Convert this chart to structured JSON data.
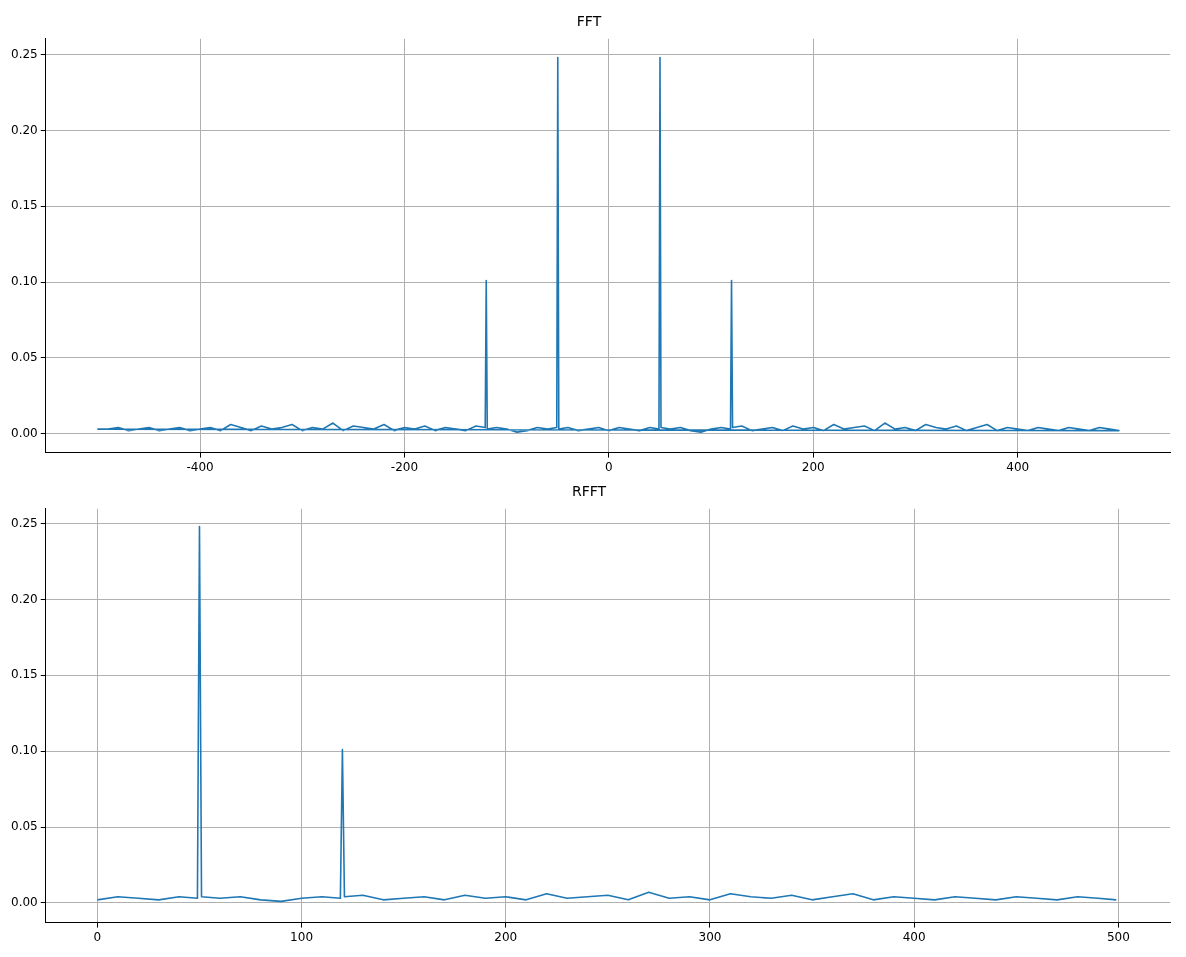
{
  "chart_data": [
    {
      "type": "line",
      "title": "FFT",
      "grid": true,
      "xlim": [
        -551,
        549
      ],
      "xticks": [
        -400,
        -200,
        0,
        200,
        400
      ],
      "ylim": [
        -0.0125,
        0.2604
      ],
      "yticks": [
        {
          "value": 0,
          "label": "0.00"
        },
        {
          "value": 0.05,
          "label": "0.05"
        },
        {
          "value": 0.1,
          "label": "0.10"
        },
        {
          "value": 0.15,
          "label": "0.15"
        },
        {
          "value": 0.2,
          "label": "0.20"
        },
        {
          "value": 0.25,
          "label": "0.25"
        }
      ],
      "series": [
        {
          "color": "#1f77b4",
          "x": [
            0,
            10,
            20,
            30,
            40,
            49,
            50,
            51,
            60,
            70,
            80,
            90,
            100,
            110,
            119,
            120,
            121,
            130,
            140,
            150,
            160,
            170,
            180,
            190,
            200,
            210,
            220,
            230,
            240,
            250,
            260,
            270,
            280,
            290,
            300,
            310,
            320,
            330,
            340,
            350,
            360,
            370,
            380,
            390,
            400,
            410,
            420,
            430,
            440,
            450,
            460,
            470,
            480,
            490,
            499,
            -500,
            -490,
            -480,
            -470,
            -460,
            -450,
            -440,
            -430,
            -420,
            -410,
            -400,
            -390,
            -380,
            -370,
            -360,
            -350,
            -340,
            -330,
            -320,
            -310,
            -300,
            -290,
            -280,
            -270,
            -260,
            -250,
            -240,
            -230,
            -220,
            -210,
            -200,
            -190,
            -180,
            -170,
            -160,
            -150,
            -140,
            -130,
            -121,
            -120,
            -119,
            -110,
            -100,
            -90,
            -80,
            -70,
            -60,
            -51,
            -50,
            -49,
            -40,
            -30,
            -20,
            -10,
            -1
          ],
          "values": [
            0.002,
            0.004,
            0.003,
            0.002,
            0.004,
            0.003,
            0.248,
            0.004,
            0.003,
            0.004,
            0.002,
            0.001,
            0.003,
            0.004,
            0.003,
            0.101,
            0.004,
            0.005,
            0.002,
            0.003,
            0.004,
            0.002,
            0.005,
            0.003,
            0.004,
            0.002,
            0.006,
            0.003,
            0.004,
            0.005,
            0.002,
            0.007,
            0.003,
            0.004,
            0.002,
            0.006,
            0.004,
            0.003,
            0.005,
            0.002,
            0.004,
            0.006,
            0.002,
            0.004,
            0.003,
            0.002,
            0.004,
            0.003,
            0.002,
            0.004,
            0.003,
            0.002,
            0.004,
            0.003,
            0.002,
            0.003,
            0.003,
            0.004,
            0.002,
            0.003,
            0.004,
            0.002,
            0.003,
            0.004,
            0.002,
            0.003,
            0.004,
            0.002,
            0.006,
            0.004,
            0.002,
            0.005,
            0.003,
            0.004,
            0.006,
            0.002,
            0.004,
            0.003,
            0.007,
            0.002,
            0.005,
            0.004,
            0.003,
            0.006,
            0.002,
            0.004,
            0.003,
            0.005,
            0.002,
            0.004,
            0.003,
            0.002,
            0.005,
            0.004,
            0.101,
            0.003,
            0.004,
            0.003,
            0.001,
            0.002,
            0.004,
            0.003,
            0.004,
            0.248,
            0.003,
            0.004,
            0.002,
            0.003,
            0.004,
            0.002
          ]
        }
      ]
    },
    {
      "type": "line",
      "title": "RFFT",
      "grid": true,
      "xlim": [
        -25.3,
        525.3
      ],
      "xticks": [
        0,
        100,
        200,
        300,
        400,
        500
      ],
      "ylim": [
        -0.013,
        0.2597
      ],
      "yticks": [
        {
          "value": 0,
          "label": "0.00"
        },
        {
          "value": 0.05,
          "label": "0.05"
        },
        {
          "value": 0.1,
          "label": "0.10"
        },
        {
          "value": 0.15,
          "label": "0.15"
        },
        {
          "value": 0.2,
          "label": "0.20"
        },
        {
          "value": 0.25,
          "label": "0.25"
        }
      ],
      "series": [
        {
          "color": "#1f77b4",
          "x": [
            0,
            10,
            20,
            30,
            40,
            49,
            50,
            51,
            60,
            70,
            80,
            90,
            100,
            110,
            119,
            120,
            121,
            130,
            140,
            150,
            160,
            170,
            180,
            190,
            200,
            210,
            220,
            230,
            240,
            250,
            260,
            270,
            280,
            290,
            300,
            310,
            320,
            330,
            340,
            350,
            360,
            370,
            380,
            390,
            400,
            410,
            420,
            430,
            440,
            450,
            460,
            470,
            480,
            490,
            499
          ],
          "values": [
            0.002,
            0.004,
            0.003,
            0.002,
            0.004,
            0.003,
            0.248,
            0.004,
            0.003,
            0.004,
            0.002,
            0.001,
            0.003,
            0.004,
            0.003,
            0.101,
            0.004,
            0.005,
            0.002,
            0.003,
            0.004,
            0.002,
            0.005,
            0.003,
            0.004,
            0.002,
            0.006,
            0.003,
            0.004,
            0.005,
            0.002,
            0.007,
            0.003,
            0.004,
            0.002,
            0.006,
            0.004,
            0.003,
            0.005,
            0.002,
            0.004,
            0.006,
            0.002,
            0.004,
            0.003,
            0.002,
            0.004,
            0.003,
            0.002,
            0.004,
            0.003,
            0.002,
            0.004,
            0.003,
            0.002
          ]
        }
      ]
    }
  ]
}
